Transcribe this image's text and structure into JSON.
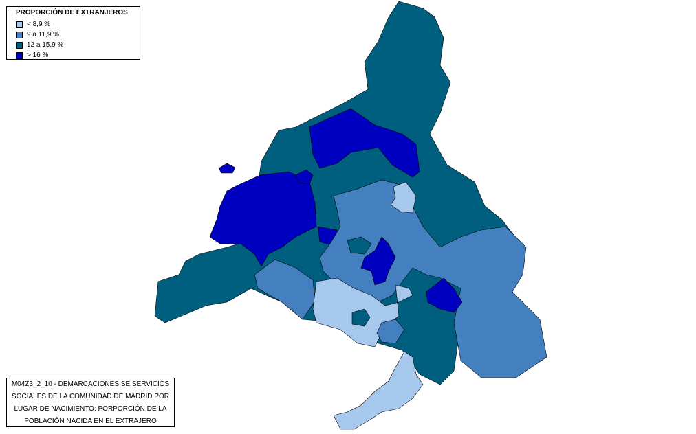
{
  "legend": {
    "title": "PROPORCIÓN DE EXTRANJEROS",
    "items": [
      {
        "label": "< 8,9 %",
        "color": "#a6c8ec"
      },
      {
        "label": "9 a 11,9 %",
        "color": "#4480c0"
      },
      {
        "label": "12 a 15,9 %",
        "color": "#005f7f"
      },
      {
        "label": "> 16 %",
        "color": "#0000c0"
      }
    ]
  },
  "caption": {
    "lines": [
      "M04Z3_2_10 - DEMARCACIONES SE SERVICIOS",
      "SOCIALES DE LA COMUNIDAD DE MADRID POR",
      "LUGAR DE NACIMIENTO: PORPORCIÓN DE LA",
      "POBLACIÓN NACIDA EN EL EXTRAJERO"
    ]
  },
  "map": {
    "outline_color": "#000000"
  }
}
